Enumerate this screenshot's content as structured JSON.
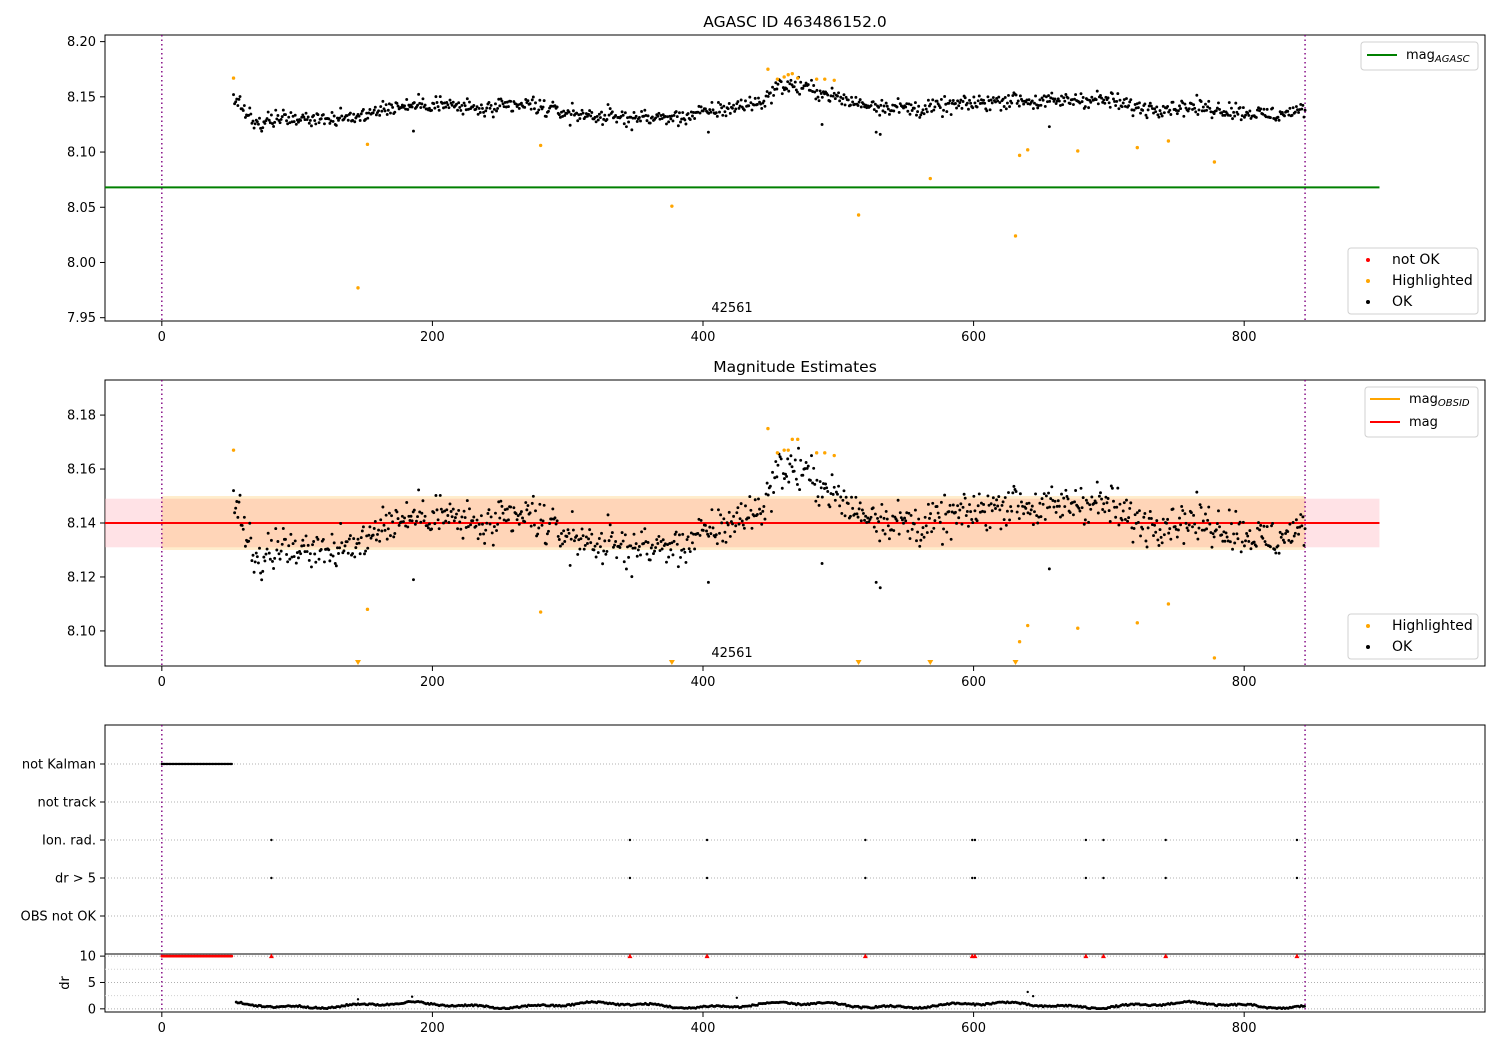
{
  "chart_data": [
    {
      "type": "scatter",
      "title": "AGASC ID 463486152.0",
      "xlabel": "",
      "ylabel": "",
      "xlim": [
        -42,
        978
      ],
      "ylim": [
        7.947,
        8.206
      ],
      "xticks": [
        "0",
        "200",
        "400",
        "600",
        "800"
      ],
      "yticks": [
        "7.95",
        "8.00",
        "8.05",
        "8.10",
        "8.15",
        "8.20"
      ],
      "grid": false,
      "annotation": "42561",
      "obsid_boundaries": [
        0,
        845
      ],
      "mag_agasc": 8.068,
      "legend_lines": {
        "position": "top-right",
        "entries": [
          {
            "label": "mag",
            "subscript": "AGASC",
            "color": "#008000"
          }
        ]
      },
      "legend_points": {
        "position": "bottom-right",
        "entries": [
          {
            "label": "not OK",
            "color": "#ff0000"
          },
          {
            "label": "Highlighted",
            "color": "#ffa500"
          },
          {
            "label": "OK",
            "color": "#000000"
          }
        ]
      },
      "highlighted": [
        [
          53,
          8.167
        ],
        [
          145,
          7.977
        ],
        [
          152,
          8.107
        ],
        [
          280,
          8.106
        ],
        [
          377,
          8.051
        ],
        [
          448,
          8.175
        ],
        [
          455,
          8.166
        ],
        [
          460,
          8.168
        ],
        [
          463,
          8.17
        ],
        [
          466,
          8.171
        ],
        [
          470,
          8.167
        ],
        [
          484,
          8.166
        ],
        [
          490,
          8.166
        ],
        [
          497,
          8.165
        ],
        [
          515,
          8.043
        ],
        [
          568,
          8.076
        ],
        [
          631,
          8.024
        ],
        [
          634,
          8.097
        ],
        [
          640,
          8.102
        ],
        [
          677,
          8.101
        ],
        [
          721,
          8.104
        ],
        [
          744,
          8.11
        ],
        [
          778,
          8.091
        ]
      ]
    },
    {
      "type": "scatter",
      "title": "Magnitude Estimates",
      "xlabel": "",
      "ylabel": "",
      "xlim": [
        -42,
        978
      ],
      "ylim": [
        8.087,
        8.193
      ],
      "xticks": [
        "0",
        "200",
        "400",
        "600",
        "800"
      ],
      "yticks": [
        "8.10",
        "8.12",
        "8.14",
        "8.16",
        "8.18"
      ],
      "grid": false,
      "annotation": "42561",
      "obsid_boundaries": [
        0,
        845
      ],
      "mag": 8.14,
      "mag_band": [
        8.131,
        8.149
      ],
      "mag_obsid": 8.14,
      "mag_obsid_band": [
        8.13,
        8.15
      ],
      "legend_lines": {
        "position": "top-right",
        "entries": [
          {
            "label": "mag",
            "subscript": "OBSID",
            "color": "#ffa500"
          },
          {
            "label": "mag",
            "subscript": "",
            "color": "#ff0000"
          }
        ]
      },
      "legend_points": {
        "position": "bottom-right",
        "entries": [
          {
            "label": "Highlighted",
            "color": "#ffa500"
          },
          {
            "label": "OK",
            "color": "#000000"
          }
        ]
      },
      "highlighted": [
        [
          53,
          8.167
        ],
        [
          152,
          8.108
        ],
        [
          280,
          8.107
        ],
        [
          448,
          8.175
        ],
        [
          455,
          8.166
        ],
        [
          460,
          8.167
        ],
        [
          463,
          8.167
        ],
        [
          466,
          8.171
        ],
        [
          470,
          8.171
        ],
        [
          484,
          8.166
        ],
        [
          490,
          8.166
        ],
        [
          497,
          8.165
        ],
        [
          634,
          8.096
        ],
        [
          640,
          8.102
        ],
        [
          677,
          8.101
        ],
        [
          721,
          8.103
        ],
        [
          744,
          8.11
        ],
        [
          778,
          8.09
        ]
      ],
      "below_range_markers_x": [
        145,
        377,
        515,
        568,
        631
      ]
    },
    {
      "type": "scatter",
      "title": "",
      "xlim": [
        -42,
        978
      ],
      "categories": [
        "not Kalman",
        "not track",
        "Ion. rad.",
        "dr > 5",
        "OBS not OK"
      ],
      "flags": {
        "not Kalman": {
          "x_range": [
            0,
            52
          ]
        },
        "not track": {
          "x": []
        },
        "Ion. rad.": {
          "x": [
            81,
            346,
            403,
            520,
            599,
            601,
            683,
            696,
            742,
            839
          ]
        },
        "dr > 5": {
          "x": [
            81,
            346,
            403,
            520,
            599,
            601,
            683,
            696,
            742,
            839
          ]
        },
        "OBS not OK": {
          "x": []
        }
      },
      "obsid_boundaries": [
        0,
        845
      ]
    },
    {
      "type": "scatter",
      "title": "",
      "xlabel": "",
      "ylabel": "dr",
      "xlim": [
        -42,
        978
      ],
      "ylim": [
        -0.6,
        10.4
      ],
      "xticks": [
        "0",
        "200",
        "400",
        "600",
        "800"
      ],
      "yticks": [
        "0",
        "5",
        "10"
      ],
      "grid": "y",
      "not_ok_markers_x": [
        81,
        346,
        403,
        520,
        599,
        601,
        683,
        696,
        742,
        839
      ],
      "not_ok_range": [
        0,
        52
      ],
      "outliers": [
        [
          145,
          1.8
        ],
        [
          185,
          2.3
        ],
        [
          425,
          2.1
        ],
        [
          640,
          3.2
        ],
        [
          644,
          2.4
        ]
      ],
      "obsid_boundaries": [
        0,
        845
      ]
    }
  ]
}
